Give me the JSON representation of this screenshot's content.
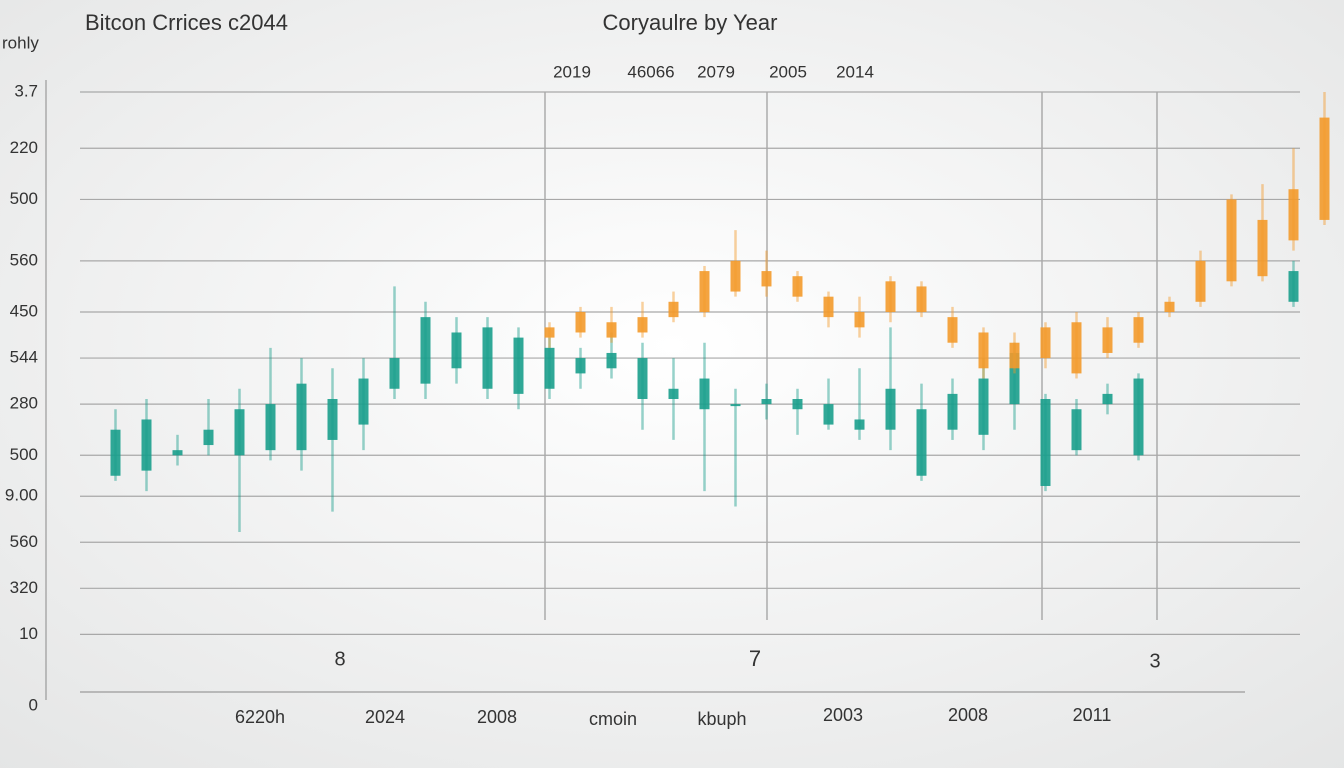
{
  "chart_data": {
    "type": "candlestick",
    "title": "Bitcon Crrices c2044",
    "subtitle": "Coryaulre by Year",
    "y_label": "rohly",
    "top_labels": [
      "2019",
      "46066",
      "2079",
      "2005",
      "2014"
    ],
    "annotations": [
      "8",
      "7",
      "3"
    ],
    "bottom_labels": [
      "6220h",
      "2024",
      "2008",
      "cmoin",
      "kbuph",
      "2003",
      "2008",
      "2011"
    ],
    "ylim": [
      0,
      12
    ],
    "yticks": [
      {
        "value": 12,
        "label": "3.7"
      },
      {
        "value": 10.9,
        "label": "220"
      },
      {
        "value": 9.9,
        "label": "500"
      },
      {
        "value": 8.7,
        "label": "560"
      },
      {
        "value": 7.7,
        "label": "450"
      },
      {
        "value": 6.8,
        "label": "544"
      },
      {
        "value": 5.9,
        "label": "280"
      },
      {
        "value": 4.9,
        "label": "500"
      },
      {
        "value": 4.1,
        "label": "9.00"
      },
      {
        "value": 3.2,
        "label": "560"
      },
      {
        "value": 2.3,
        "label": "320"
      },
      {
        "value": 1.4,
        "label": "10"
      },
      0
    ],
    "grid": true,
    "categories": [
      null,
      null,
      null,
      null,
      null,
      null,
      null,
      null,
      null,
      null,
      null,
      null,
      null,
      null,
      null,
      null,
      null,
      null,
      null,
      null,
      null,
      null,
      null,
      null,
      null,
      null,
      null,
      null,
      null,
      null,
      null,
      null,
      null,
      null,
      null,
      null,
      null,
      null,
      null,
      null
    ],
    "series": [
      {
        "color": "#1a9e8c",
        "open": [
          5.4,
          4.6,
          5.0,
          5.1,
          4.9,
          5.9,
          5.0,
          6.0,
          5.5,
          6.8,
          6.3,
          6.6,
          7.4,
          6.1,
          6.2,
          6.8,
          6.6,
          6.8,
          6.0,
          6.4,
          5.9,
          5.9,
          6.0,
          5.9,
          5.4,
          6.2,
          5.8,
          5.4,
          6.4,
          6.9,
          6.0,
          5.0,
          5.9,
          6.4,
          null,
          null,
          null,
          null,
          8.5,
          null
        ],
        "close": [
          4.5,
          5.6,
          4.9,
          5.4,
          5.8,
          5.0,
          6.3,
          5.2,
          6.4,
          6.2,
          7.6,
          7.3,
          6.2,
          7.2,
          7.0,
          6.5,
          6.9,
          6.0,
          6.2,
          5.8,
          5.9,
          6.0,
          5.8,
          5.5,
          5.6,
          5.4,
          4.5,
          6.1,
          5.3,
          5.9,
          4.3,
          5.8,
          6.1,
          4.9,
          null,
          null,
          null,
          null,
          7.9,
          null
        ],
        "high": [
          5.8,
          6.0,
          5.3,
          6.0,
          6.2,
          7.0,
          6.8,
          6.6,
          6.8,
          8.2,
          7.9,
          7.6,
          7.6,
          7.4,
          7.2,
          7.0,
          7.3,
          7.1,
          6.8,
          7.1,
          6.2,
          6.3,
          6.2,
          6.4,
          6.6,
          7.4,
          6.3,
          6.4,
          6.8,
          7.1,
          6.1,
          6.0,
          6.3,
          6.5,
          null,
          null,
          null,
          null,
          8.7,
          null
        ],
        "low": [
          4.4,
          4.2,
          4.7,
          4.9,
          3.4,
          4.8,
          4.6,
          3.8,
          5.0,
          6.0,
          6.0,
          6.3,
          6.0,
          5.8,
          6.0,
          6.2,
          6.4,
          5.4,
          5.2,
          4.2,
          3.9,
          5.6,
          5.3,
          5.4,
          5.2,
          5.0,
          4.4,
          5.2,
          5.0,
          5.4,
          4.2,
          4.9,
          5.7,
          4.8,
          null,
          null,
          null,
          null,
          7.8,
          null
        ]
      },
      {
        "color": "#f39a2b",
        "open": [
          null,
          null,
          null,
          null,
          null,
          null,
          null,
          null,
          null,
          null,
          null,
          null,
          null,
          null,
          7.2,
          7.3,
          7.5,
          7.6,
          7.6,
          7.7,
          8.1,
          8.5,
          8.4,
          8.0,
          7.7,
          7.7,
          8.2,
          7.6,
          7.3,
          6.6,
          6.8,
          7.5,
          6.9,
          7.1,
          7.7,
          7.9,
          8.3,
          8.4,
          10.1,
          9.5
        ],
        "close": [
          null,
          null,
          null,
          null,
          null,
          null,
          null,
          null,
          null,
          null,
          null,
          null,
          null,
          null,
          7.4,
          7.7,
          7.2,
          7.3,
          7.9,
          8.5,
          8.7,
          8.2,
          8.0,
          7.6,
          7.4,
          8.3,
          7.7,
          7.1,
          6.6,
          7.1,
          7.4,
          6.5,
          7.4,
          7.6,
          7.9,
          8.7,
          9.9,
          9.5,
          9.1,
          11.5
        ],
        "high": [
          null,
          null,
          null,
          null,
          null,
          null,
          null,
          null,
          null,
          null,
          null,
          null,
          null,
          null,
          7.5,
          7.8,
          7.8,
          7.9,
          8.1,
          8.6,
          9.3,
          8.9,
          8.5,
          8.1,
          8.0,
          8.4,
          8.3,
          7.8,
          7.4,
          7.3,
          7.5,
          7.7,
          7.6,
          7.7,
          8.0,
          8.9,
          10.0,
          10.2,
          10.9,
          12.0
        ],
        "low": [
          null,
          null,
          null,
          null,
          null,
          null,
          null,
          null,
          null,
          null,
          null,
          null,
          null,
          null,
          7.0,
          7.2,
          7.1,
          7.2,
          7.5,
          7.6,
          8.0,
          8.0,
          7.9,
          7.4,
          7.2,
          7.5,
          7.6,
          7.0,
          6.4,
          6.5,
          6.6,
          6.4,
          6.8,
          7.0,
          7.6,
          7.8,
          8.2,
          8.3,
          8.9,
          9.4
        ]
      }
    ]
  }
}
